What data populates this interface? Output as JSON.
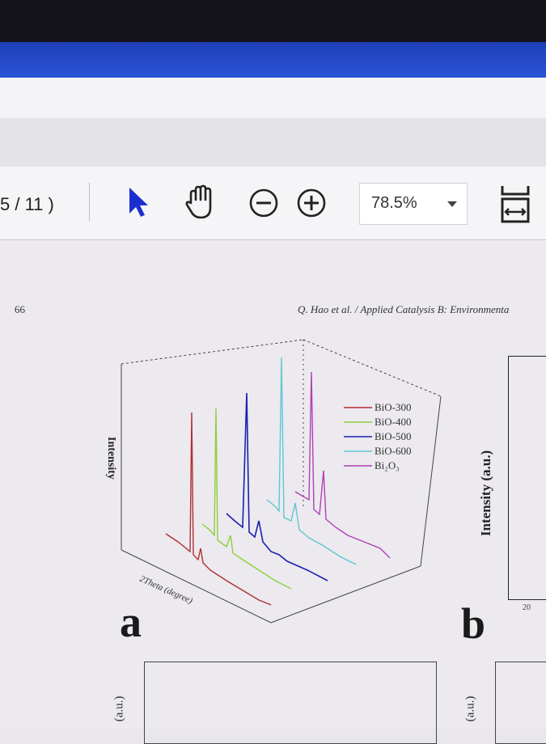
{
  "toolbar": {
    "page_count": "5 / 11 )",
    "zoom": "78.5%",
    "icons": [
      "select-arrow-icon",
      "hand-tool-icon",
      "zoom-out-icon",
      "zoom-in-icon",
      "fit-page-icon"
    ]
  },
  "document": {
    "page_number": "66",
    "running_header": "Q. Hao et al. / Applied Catalysis B: Environmenta"
  },
  "figure_a": {
    "letter": "a",
    "y_label": "Intensity",
    "x_label": "2Theta (degree)",
    "legend": [
      "BiO-300",
      "BiO-400",
      "BiO-500",
      "BiO-600",
      "Bi₂O₃"
    ],
    "colors": [
      "#b03030",
      "#8fcf3a",
      "#1a20b0",
      "#60c8d0",
      "#b040b8"
    ]
  },
  "figure_b": {
    "letter": "b",
    "y_label": "Intensity (a.u.)",
    "x_tick": "20"
  },
  "lower_figures": {
    "y_label_left": "(a.u.)",
    "y_label_right": "(a.u.)"
  }
}
